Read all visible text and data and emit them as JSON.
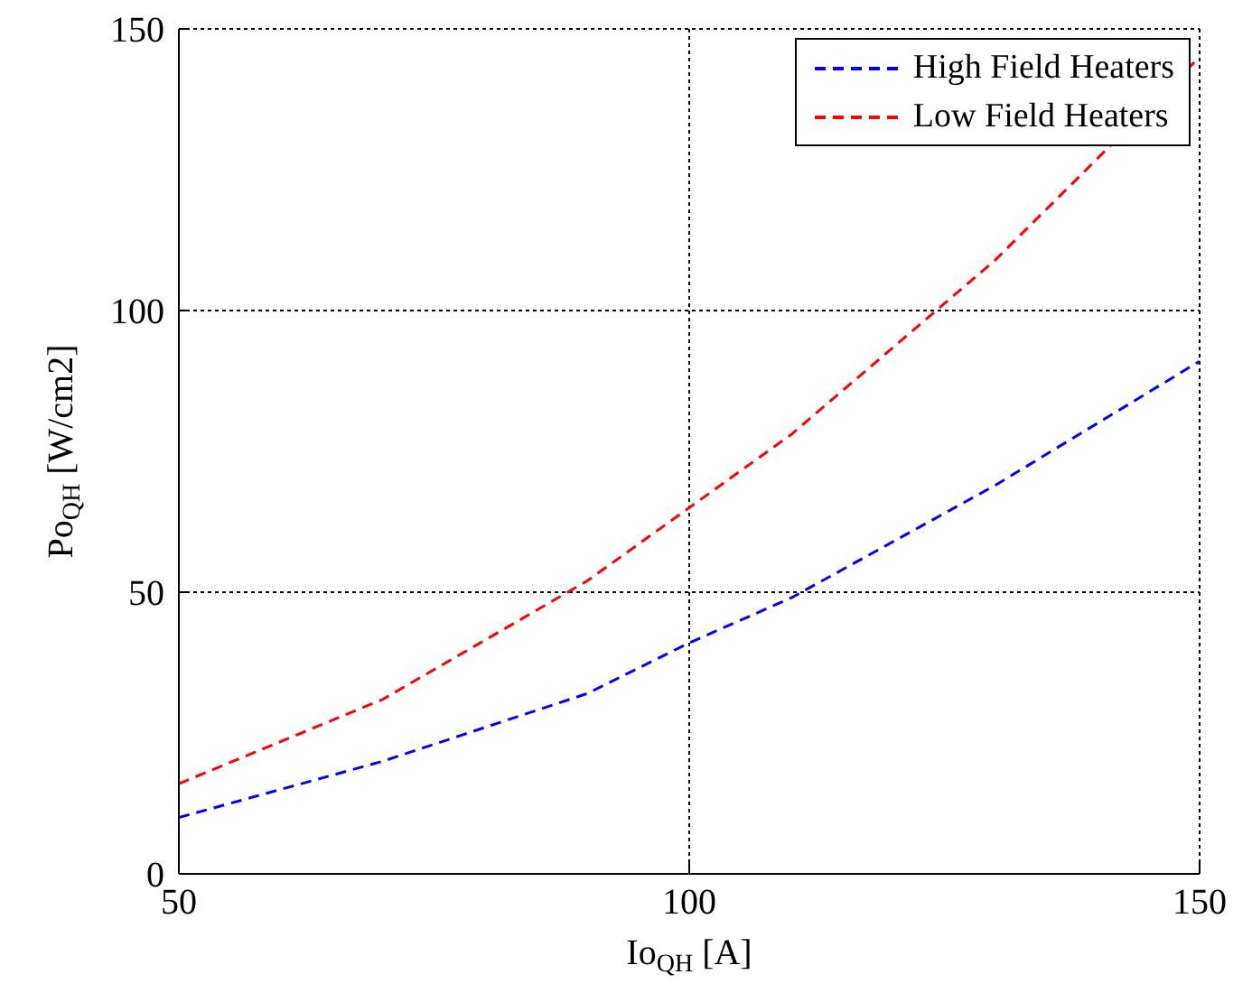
{
  "chart_data": {
    "type": "line",
    "xlabel": "Io$_{QH}$ [A]",
    "ylabel": "Po$_{QH}$ [W/cm2]",
    "x": [
      50,
      70,
      90,
      100,
      110,
      130,
      150
    ],
    "series": [
      {
        "name": "High Field Heaters",
        "color": "#0000ff",
        "values": [
          10,
          20,
          32,
          41,
          49,
          69,
          91
        ]
      },
      {
        "name": "Low Field Heaters",
        "color": "#ff0000",
        "values": [
          16,
          31,
          52,
          65,
          78,
          109,
          145
        ]
      }
    ],
    "xlim": [
      50,
      150
    ],
    "xticks": [
      50,
      100,
      150
    ],
    "ylim": [
      0,
      150
    ],
    "yticks": [
      0,
      50,
      100,
      150
    ],
    "grid": true,
    "legend": "top right",
    "line_style": "dashed",
    "marker": "none"
  }
}
